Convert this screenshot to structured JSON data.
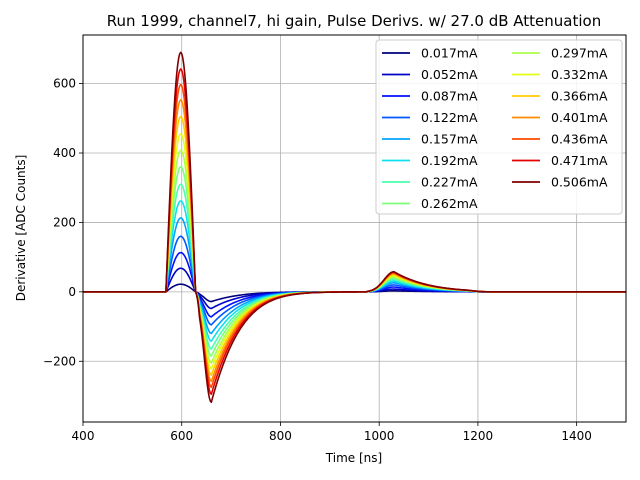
{
  "chart_data": {
    "type": "line",
    "title": "Run 1999, channel7, hi gain, Pulse Derivs. w/ 27.0 dB Attenuation",
    "xlabel": "Time [ns]",
    "ylabel": "Derivative [ADC Counts]",
    "xlim": [
      400,
      1500
    ],
    "ylim": [
      -375,
      740
    ],
    "xticks": [
      400,
      600,
      800,
      1000,
      1200,
      1400
    ],
    "yticks": [
      -200,
      0,
      200,
      400,
      600
    ],
    "ytick_labels": [
      "−200",
      "0",
      "200",
      "400",
      "600"
    ],
    "grid": true,
    "legend_position": "top-right",
    "legend_columns": 2,
    "series": [
      {
        "name": "0.017mA",
        "color": "#00007f",
        "peak": 22,
        "trough": -28,
        "bump": 3
      },
      {
        "name": "0.052mA",
        "color": "#0000c8",
        "peak": 68,
        "trough": -48,
        "bump": 8
      },
      {
        "name": "0.087mA",
        "color": "#0010ff",
        "peak": 113,
        "trough": -72,
        "bump": 14
      },
      {
        "name": "0.122mA",
        "color": "#0058ff",
        "peak": 160,
        "trough": -95,
        "bump": 20
      },
      {
        "name": "0.157mA",
        "color": "#00a4ff",
        "peak": 213,
        "trough": -120,
        "bump": 26
      },
      {
        "name": "0.192mA",
        "color": "#0de0f1",
        "peak": 262,
        "trough": -142,
        "bump": 31
      },
      {
        "name": "0.227mA",
        "color": "#49ffad",
        "peak": 310,
        "trough": -165,
        "bump": 36
      },
      {
        "name": "0.262mA",
        "color": "#7dff7a",
        "peak": 360,
        "trough": -185,
        "bump": 40
      },
      {
        "name": "0.297mA",
        "color": "#adff49",
        "peak": 408,
        "trough": -205,
        "bump": 44
      },
      {
        "name": "0.332mA",
        "color": "#e4ff13",
        "peak": 455,
        "trough": -222,
        "bump": 47
      },
      {
        "name": "0.366mA",
        "color": "#ffcc00",
        "peak": 505,
        "trough": -240,
        "bump": 50
      },
      {
        "name": "0.401mA",
        "color": "#ff8c00",
        "peak": 553,
        "trough": -258,
        "bump": 53
      },
      {
        "name": "0.436mA",
        "color": "#ff4a00",
        "peak": 597,
        "trough": -275,
        "bump": 55
      },
      {
        "name": "0.471mA",
        "color": "#e40000",
        "peak": 642,
        "trough": -295,
        "bump": 57
      },
      {
        "name": "0.506mA",
        "color": "#7f0000",
        "peak": 690,
        "trough": -318,
        "bump": 58
      }
    ]
  }
}
